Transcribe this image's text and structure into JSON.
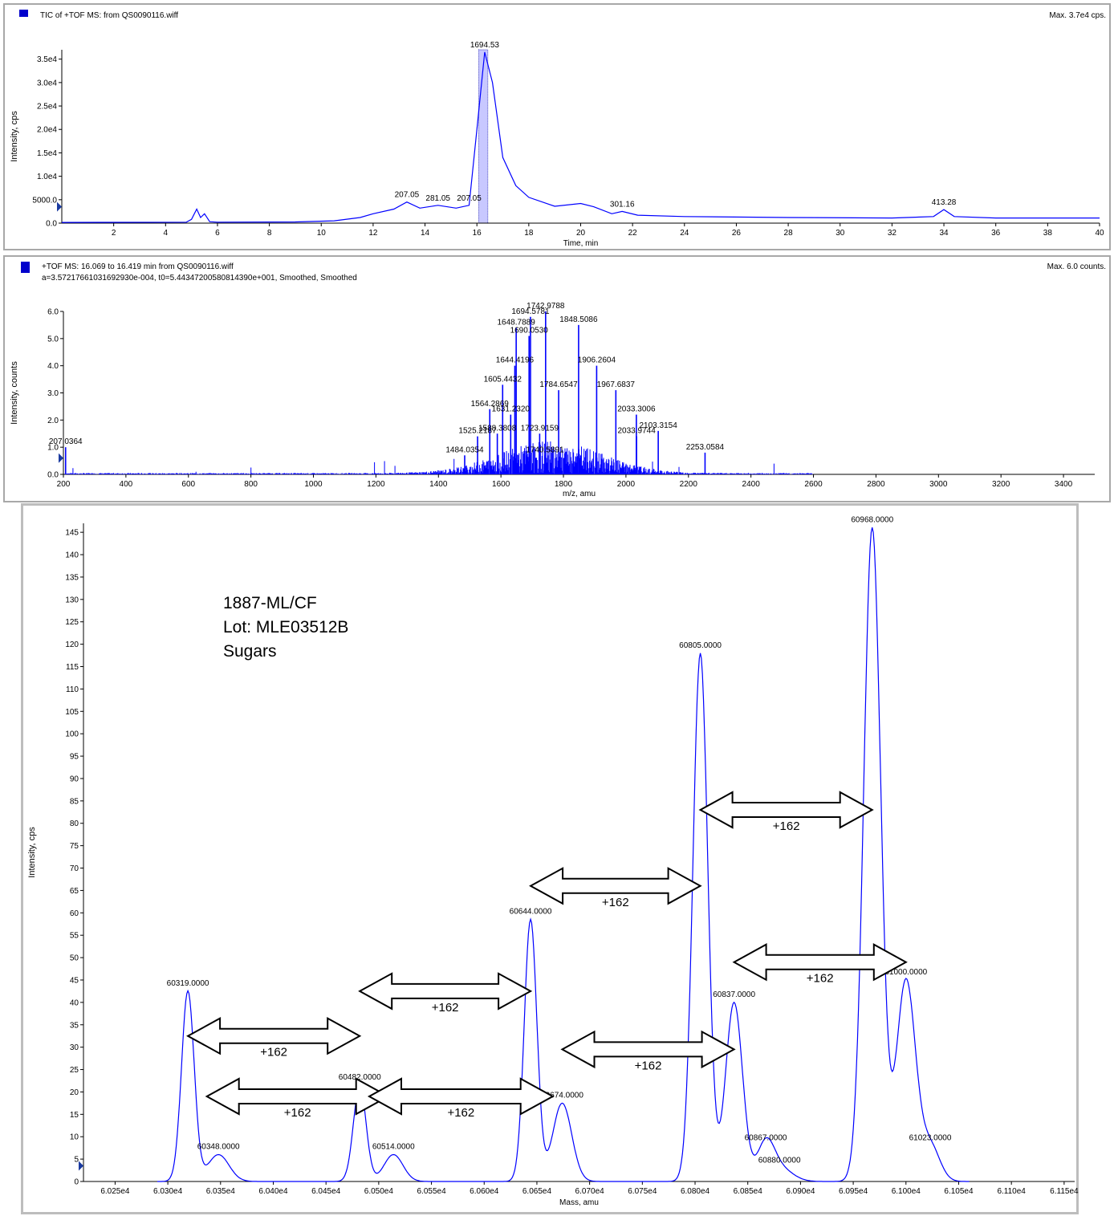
{
  "colors": {
    "trace": "#0000ff",
    "axis": "#000000",
    "legend": "#0000cc",
    "highlight": "#c8c8ff"
  },
  "panel1": {
    "title": "TIC of +TOF MS: from QS0090116.wiff",
    "max_label": "Max. 3.7e4 cps.",
    "ylabel": "Intensity, cps",
    "xlabel": "Time, min",
    "y_ticks": [
      "0.0",
      "5000.0",
      "1.0e4",
      "1.5e4",
      "2.0e4",
      "2.5e4",
      "3.0e4",
      "3.5e4"
    ],
    "x_ticks": [
      "2",
      "4",
      "6",
      "8",
      "10",
      "12",
      "14",
      "16",
      "18",
      "20",
      "22",
      "24",
      "26",
      "28",
      "30",
      "32",
      "34",
      "36",
      "38",
      "40"
    ],
    "peak_labels": [
      "1694.53",
      "207.05",
      "281.05",
      "207.05",
      "301.16",
      "413.28"
    ]
  },
  "panel2": {
    "title": "+TOF MS: 16.069 to 16.419 min from QS0090116.wiff",
    "subtitle": "a=3.57217661031692930e-004, t0=5.44347200580814390e+001, Smoothed, Smoothed",
    "max_label": "Max. 6.0 counts.",
    "ylabel": "Intensity, counts",
    "xlabel": "m/z, amu",
    "y_ticks": [
      "0.0",
      "1.0",
      "2.0",
      "3.0",
      "4.0",
      "5.0",
      "6.0"
    ],
    "x_ticks": [
      "200",
      "400",
      "600",
      "800",
      "1000",
      "1200",
      "1400",
      "1600",
      "1800",
      "2000",
      "2200",
      "2400",
      "2600",
      "2800",
      "3000",
      "3200",
      "3400"
    ],
    "peak_labels": [
      "207.0364",
      "1694.5781",
      "1742.9788",
      "1848.5086",
      "1648.7889",
      "1690.0530",
      "1644.4196",
      "1906.2604",
      "1605.4432",
      "1784.6547",
      "1967.6837",
      "1564.2869",
      "1631.2320",
      "2033.3006",
      "1588.3808",
      "1525.2187",
      "1723.9159",
      "2103.3154",
      "2033.9744",
      "1484.0354",
      "2253.0584",
      "1740.5891"
    ]
  },
  "panel3": {
    "sample_lines": [
      "1887-ML/CF",
      "Lot: MLE03512B",
      "Sugars"
    ],
    "ylabel": "Intensity, cps",
    "xlabel": "Mass, amu",
    "y_ticks": [
      "0",
      "5",
      "10",
      "15",
      "20",
      "25",
      "30",
      "35",
      "40",
      "45",
      "50",
      "55",
      "60",
      "65",
      "70",
      "75",
      "80",
      "85",
      "90",
      "95",
      "100",
      "105",
      "110",
      "115",
      "120",
      "125",
      "130",
      "135",
      "140",
      "145"
    ],
    "x_ticks": [
      "6.025e4",
      "6.030e4",
      "6.035e4",
      "6.040e4",
      "6.045e4",
      "6.050e4",
      "6.055e4",
      "6.060e4",
      "6.065e4",
      "6.070e4",
      "6.075e4",
      "6.080e4",
      "6.085e4",
      "6.090e4",
      "6.095e4",
      "6.100e4",
      "6.105e4",
      "6.110e4",
      "6.115e4"
    ],
    "arrow_label": "+162"
  },
  "chart_data": [
    {
      "type": "line",
      "title": "TIC of +TOF MS: from QS0090116.wiff",
      "xlabel": "Time, min",
      "ylabel": "Intensity, cps",
      "xlim": [
        0,
        40
      ],
      "ylim": [
        0,
        37000
      ],
      "highlight_range": [
        16.069,
        16.419
      ],
      "series": [
        {
          "points": [
            [
              0,
              150
            ],
            [
              4.8,
              200
            ],
            [
              5.0,
              800
            ],
            [
              5.2,
              3000
            ],
            [
              5.35,
              1200
            ],
            [
              5.5,
              2000
            ],
            [
              5.7,
              300
            ],
            [
              6,
              200
            ],
            [
              9,
              250
            ],
            [
              10.5,
              500
            ],
            [
              11.5,
              1200
            ],
            [
              12,
              2000
            ],
            [
              12.8,
              3000
            ],
            [
              13.3,
              4500
            ],
            [
              13.8,
              3200
            ],
            [
              14.5,
              3800
            ],
            [
              15.2,
              3200
            ],
            [
              15.7,
              3800
            ],
            [
              16.0,
              20000
            ],
            [
              16.3,
              36500
            ],
            [
              16.6,
              30000
            ],
            [
              17.0,
              14000
            ],
            [
              17.5,
              8000
            ],
            [
              18.0,
              5500
            ],
            [
              19.0,
              3600
            ],
            [
              20.0,
              4200
            ],
            [
              20.5,
              3500
            ],
            [
              21.2,
              2000
            ],
            [
              21.6,
              2500
            ],
            [
              22.2,
              1700
            ],
            [
              24,
              1400
            ],
            [
              28,
              1200
            ],
            [
              32,
              1100
            ],
            [
              33.6,
              1400
            ],
            [
              34.0,
              2900
            ],
            [
              34.4,
              1400
            ],
            [
              36,
              1100
            ],
            [
              40,
              1100
            ]
          ]
        }
      ],
      "peak_labels": [
        [
          16.3,
          "1694.53"
        ],
        [
          13.3,
          "207.05"
        ],
        [
          14.5,
          "281.05"
        ],
        [
          15.7,
          "207.05"
        ],
        [
          21.6,
          "301.16"
        ],
        [
          34.0,
          "413.28"
        ]
      ]
    },
    {
      "type": "bar",
      "title": "+TOF MS: 16.069 to 16.419 min from QS0090116.wiff",
      "xlabel": "m/z, amu",
      "ylabel": "Intensity, counts",
      "xlim": [
        200,
        3500
      ],
      "ylim": [
        0,
        6.0
      ],
      "peaks": [
        [
          207.0364,
          1.0
        ],
        [
          1484.0354,
          0.7
        ],
        [
          1525.2187,
          1.4
        ],
        [
          1564.2869,
          2.4
        ],
        [
          1588.3808,
          1.5
        ],
        [
          1605.4432,
          3.3
        ],
        [
          1631.232,
          2.2
        ],
        [
          1644.4196,
          4.0
        ],
        [
          1648.7889,
          5.4
        ],
        [
          1690.053,
          5.1
        ],
        [
          1694.5781,
          5.8
        ],
        [
          1723.9159,
          1.5
        ],
        [
          1740.5891,
          0.7
        ],
        [
          1742.9788,
          6.0
        ],
        [
          1784.6547,
          3.1
        ],
        [
          1848.5086,
          5.5
        ],
        [
          1906.2604,
          4.0
        ],
        [
          1967.6837,
          3.1
        ],
        [
          2033.3006,
          2.2
        ],
        [
          2033.9744,
          1.4
        ],
        [
          2103.3154,
          1.6
        ],
        [
          2253.0584,
          0.8
        ]
      ],
      "peak_labels": [
        [
          207.0364,
          "207.0364"
        ],
        [
          1694.5781,
          "1694.5781"
        ],
        [
          1742.9788,
          "1742.9788"
        ],
        [
          1848.5086,
          "1848.5086"
        ],
        [
          1648.7889,
          "1648.7889"
        ],
        [
          1690.053,
          "1690.0530"
        ],
        [
          1644.4196,
          "1644.4196"
        ],
        [
          1906.2604,
          "1906.2604"
        ],
        [
          1605.4432,
          "1605.4432"
        ],
        [
          1784.6547,
          "1784.6547"
        ],
        [
          1967.6837,
          "1967.6837"
        ],
        [
          1564.2869,
          "1564.2869"
        ],
        [
          1631.232,
          "1631.2320"
        ],
        [
          2033.3006,
          "2033.3006"
        ],
        [
          1588.3808,
          "1588.3808"
        ],
        [
          1525.2187,
          "1525.2187"
        ],
        [
          1723.9159,
          "1723.9159"
        ],
        [
          2103.3154,
          "2103.3154"
        ],
        [
          2033.9744,
          "2033.9744"
        ],
        [
          1484.0354,
          "1484.0354"
        ],
        [
          2253.0584,
          "2253.0584"
        ],
        [
          1740.5891,
          "1740.5891"
        ]
      ]
    },
    {
      "type": "line",
      "xlabel": "Mass, amu",
      "ylabel": "Intensity, cps",
      "xlim": [
        60220,
        61160
      ],
      "ylim": [
        0,
        147
      ],
      "peaks": [
        [
          60319,
          42.5,
          6
        ],
        [
          60348,
          6,
          10
        ],
        [
          60482,
          21.5,
          6
        ],
        [
          60514,
          6,
          9
        ],
        [
          60644,
          58.5,
          6
        ],
        [
          60674,
          17.5,
          9
        ],
        [
          60805,
          118,
          7
        ],
        [
          60837,
          40,
          8
        ],
        [
          60867,
          8,
          8
        ],
        [
          60880,
          3,
          12
        ],
        [
          60968,
          146,
          8
        ],
        [
          61000,
          45,
          9
        ],
        [
          61023,
          8,
          9
        ]
      ],
      "peak_labels": [
        [
          60319,
          "60319.0000"
        ],
        [
          60348,
          "60348.0000"
        ],
        [
          60482,
          "60482.0000"
        ],
        [
          60514,
          "60514.0000"
        ],
        [
          60644,
          "60644.0000"
        ],
        [
          60674,
          "60674.0000"
        ],
        [
          60805,
          "60805.0000"
        ],
        [
          60837,
          "60837.0000"
        ],
        [
          60867,
          "60867.0000"
        ],
        [
          60880,
          "60880.0000"
        ],
        [
          60968,
          "60968.0000"
        ],
        [
          61000,
          "61000.0000"
        ],
        [
          61023,
          "61023.0000"
        ]
      ],
      "annotations": [
        {
          "text": "+162",
          "from": 60319,
          "to": 60482,
          "y": 32.5
        },
        {
          "text": "+162",
          "from": 60337,
          "to": 60509,
          "y": 19
        },
        {
          "text": "+162",
          "from": 60482,
          "to": 60644,
          "y": 42.5
        },
        {
          "text": "+162",
          "from": 60491,
          "to": 60665,
          "y": 19
        },
        {
          "text": "+162",
          "from": 60644,
          "to": 60805,
          "y": 66
        },
        {
          "text": "+162",
          "from": 60674,
          "to": 60837,
          "y": 29.5
        },
        {
          "text": "+162",
          "from": 60805,
          "to": 60968,
          "y": 83
        },
        {
          "text": "+162",
          "from": 60837,
          "to": 61000,
          "y": 49
        }
      ]
    }
  ]
}
